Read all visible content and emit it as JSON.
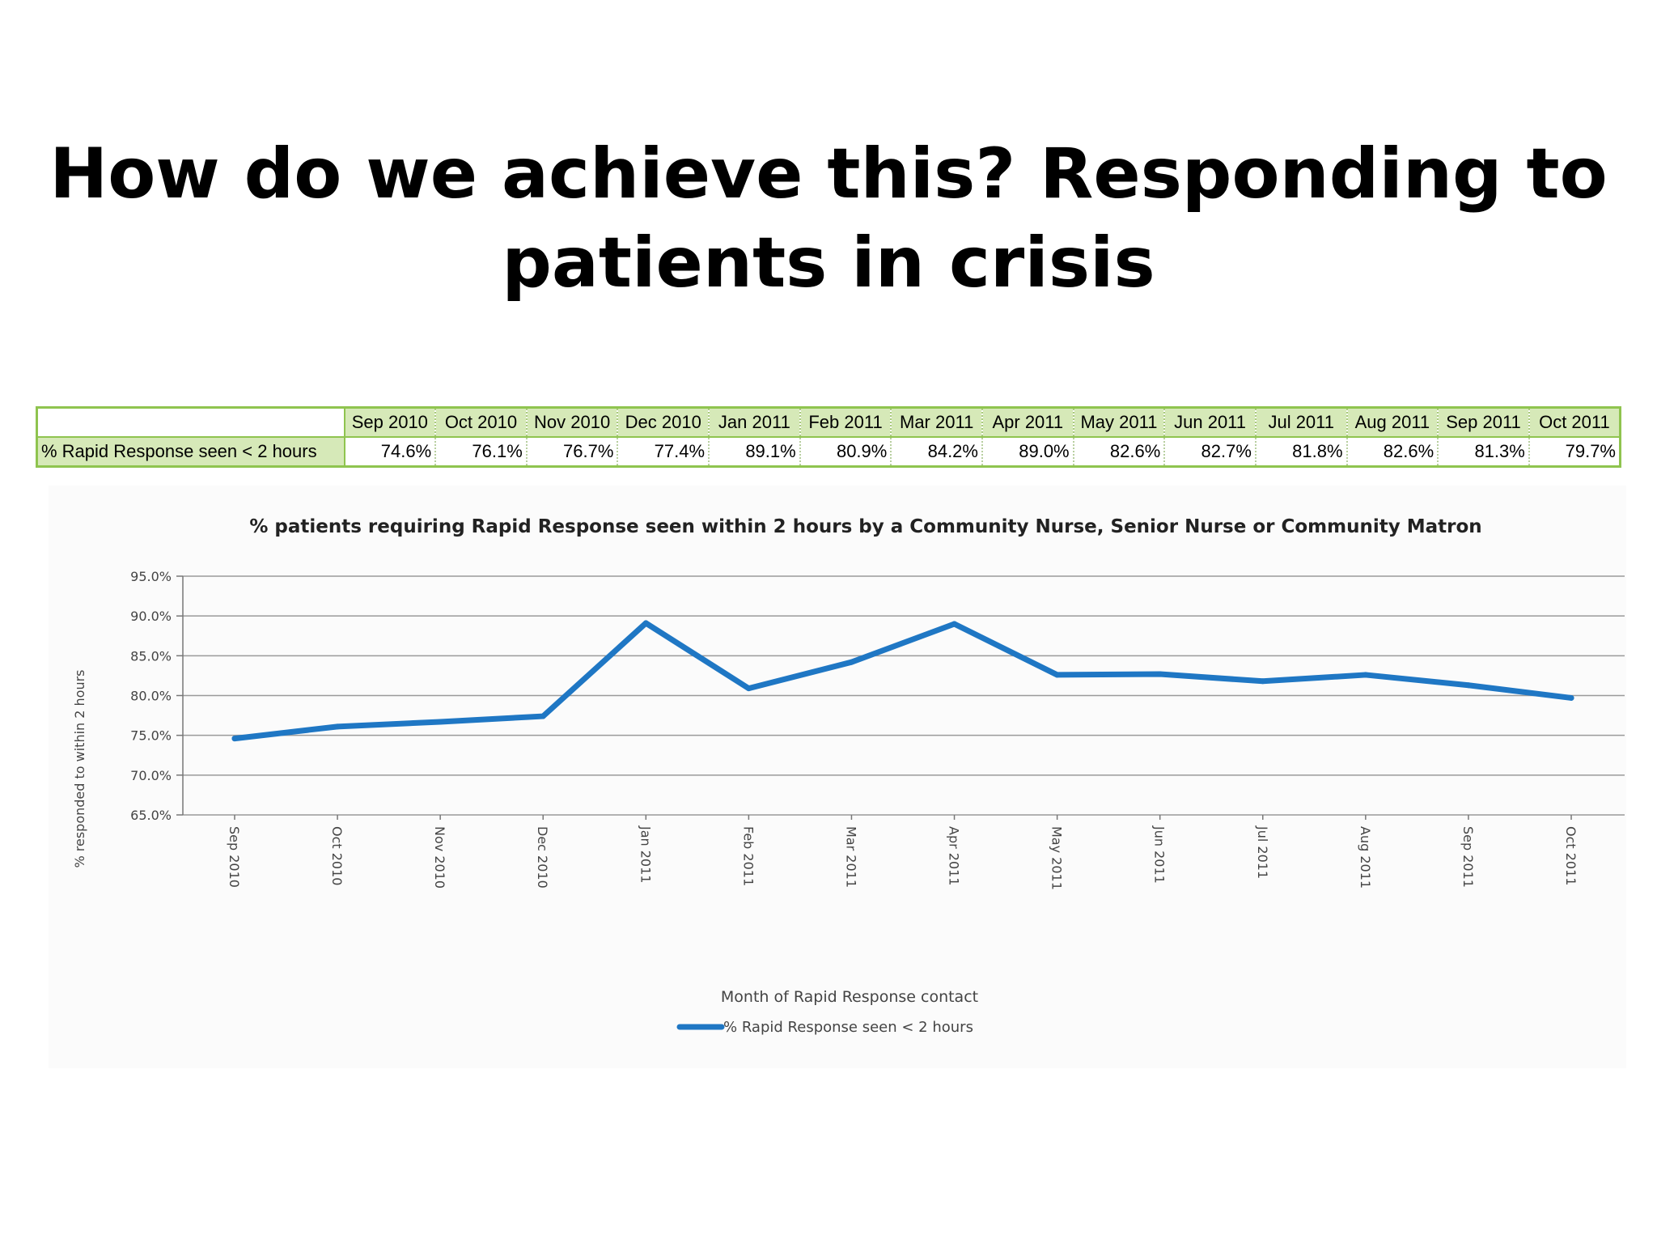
{
  "slide": {
    "title_line1": "How do we achieve this? Responding to",
    "title_line2": "patients in crisis"
  },
  "table": {
    "row_label": "% Rapid Response seen < 2 hours",
    "columns": [
      "Sep 2010",
      "Oct 2010",
      "Nov 2010",
      "Dec 2010",
      "Jan 2011",
      "Feb 2011",
      "Mar 2011",
      "Apr 2011",
      "May 2011",
      "Jun 2011",
      "Jul 2011",
      "Aug 2011",
      "Sep 2011",
      "Oct 2011"
    ],
    "values": [
      "74.6%",
      "76.1%",
      "76.7%",
      "77.4%",
      "89.1%",
      "80.9%",
      "84.2%",
      "89.0%",
      "82.6%",
      "82.7%",
      "81.8%",
      "82.6%",
      "81.3%",
      "79.7%"
    ]
  },
  "chart_data": {
    "type": "line",
    "title": "% patients requiring Rapid Response seen within 2 hours by a Community Nurse, Senior Nurse or Community Matron",
    "xlabel": "Month of Rapid Response contact",
    "ylabel": "% responded to within 2 hours",
    "categories": [
      "Sep 2010",
      "Oct 2010",
      "Nov 2010",
      "Dec 2010",
      "Jan 2011",
      "Feb 2011",
      "Mar 2011",
      "Apr 2011",
      "May 2011",
      "Jun 2011",
      "Jul 2011",
      "Aug 2011",
      "Sep 2011",
      "Oct 2011"
    ],
    "series": [
      {
        "name": "% Rapid Response seen < 2 hours",
        "values": [
          74.6,
          76.1,
          76.7,
          77.4,
          89.1,
          80.9,
          84.2,
          89.0,
          82.6,
          82.7,
          81.8,
          82.6,
          81.3,
          79.7
        ],
        "color": "#1f77c4"
      }
    ],
    "ylim": [
      65,
      95
    ],
    "yticks": [
      "95.0%",
      "90.0%",
      "85.0%",
      "80.0%",
      "75.0%",
      "70.0%",
      "65.0%"
    ],
    "ytick_values": [
      95,
      90,
      85,
      80,
      75,
      70,
      65
    ],
    "grid": true,
    "legend_position": "bottom"
  }
}
